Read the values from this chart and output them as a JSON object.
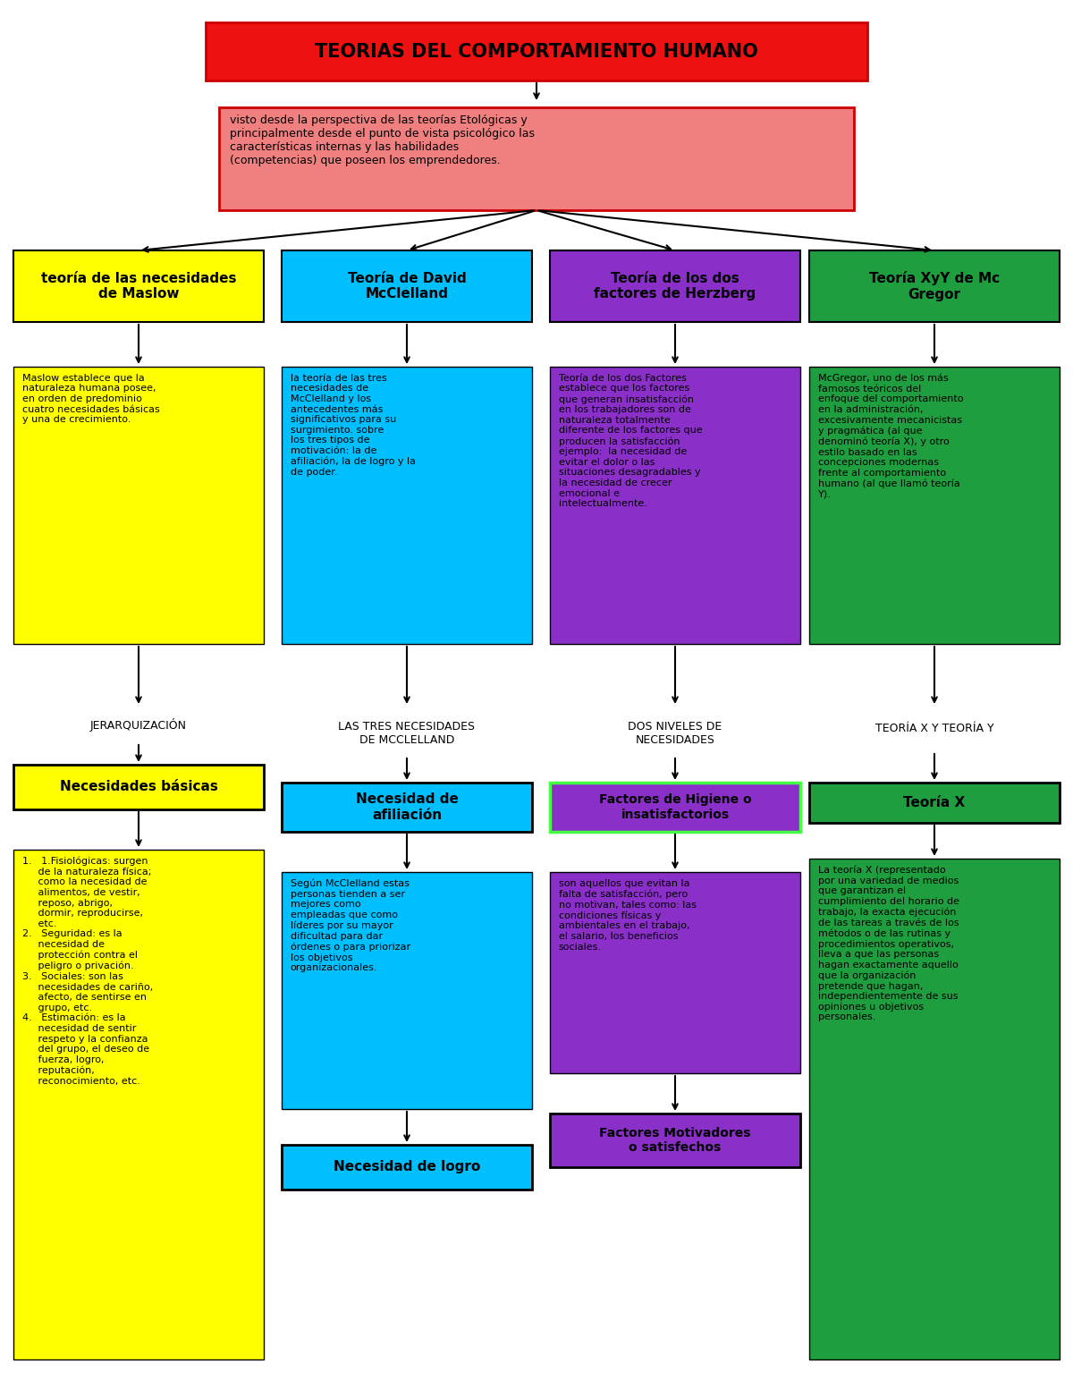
{
  "title": "TEORIAS DEL COMPORTAMIENTO HUMANO",
  "title_color": "#EE1111",
  "bg_color": "#FFFFFF",
  "subtitle_text": "visto desde la perspectiva de las teorías Etológicas y\nprincipalmente desde el punto de vista psicológico las\ncaracterísticas internas y las habilidades\n(competencias) que poseen los emprendedores.",
  "subtitle_color": "#F08080",
  "col_headers": [
    "teoría de las necesidades\nde Maslow",
    "Teoría de David\nMcClelland",
    "Teoría de los dos\nfactores de Herzberg",
    "Teoría XyY de Mc\nGregor"
  ],
  "col_colors": [
    "#FFFF00",
    "#00BFFF",
    "#8B2FC9",
    "#1E9E3E"
  ],
  "col_bodies": [
    "Maslow establece que la\nnaturaleza humana posee,\nen orden de predominio\ncuatro necesidades básicas\ny una de crecimiento.",
    "la teoría de las tres\nnecesidades de\nMcClelland y los\nantecedentes más\nsignificativos para su\nsurgimiento. sobre\nlos tres tipos de\nmotivación: la de\nafiliación, la de logro y la\nde poder.",
    "Teoría de los dos Factores\nestablece que los factores\nque generan insatisfacción\nen los trabajadores son de\nnaturaleza totalmente\ndiferente de los factores que\nproducen la satisfacción\nejemplo:  la necesidad de\nevitar el dolor o las\nsituaciones desagradables y\nla necesidad de crecer\nemocional e\nintelectualmente.",
    "McGregor, uno de los más\nfamosos teóricos del\nenfoque del comportamiento\nen la administración,\nexcesivamente mecanicistas\ny pragmática (al que\ndenominó teoría X), y otro\nestilo basado en las\nconcepciones modernas\nfrente al comportamiento\nhumano (al que llamó teoría\nY)."
  ],
  "col1_label1": "JERARQUIZACIÓN",
  "col1_box1_text": "Necesidades básicas",
  "col1_list": "1.   1.Fisiológicas: surgen\n     de la naturaleza física;\n     como la necesidad de\n     alimentos, de vestir,\n     reposo, abrigo,\n     dormir, reproducirse,\n     etc.\n2.   Seguridad: es la\n     necesidad de\n     protección contra el\n     peligro o privación.\n3.   Sociales: son las\n     necesidades de cariño,\n     afecto, de sentirse en\n     grupo, etc.\n4.   Estimación: es la\n     necesidad de sentir\n     respeto y la confianza\n     del grupo, el deseo de\n     fuerza, logro,\n     reputación,\n     reconocimiento, etc.",
  "col2_label1": "LAS TRES NECESIDADES\nDE MCCLELLAND",
  "col2_box1_text": "Necesidad de\nafiliación",
  "col2_box1_body": "Según McClelland estas\npersonas tienden a ser\nmejores como\nempleadas que como\nlíderes por su mayor\ndificultad para dar\nórdenes o para priorizar\nlos objetivos\norganizacionales.",
  "col2_box2_text": "Necesidad de logro",
  "col3_label1": "DOS NIVELES DE\nNECESIDADES",
  "col3_box1_text": "Factores de Higiene o\ninsatisfactorios",
  "col3_box1_border": "#44FF44",
  "col3_box1_body": "son aquellos que evitan la\nfalta de satisfacción, pero\nno motivan, tales como: las\ncondiciones físicas y\nambientales en el trabajo,\nel salario, los beneficios\nsociales.",
  "col3_box2_text": "Factores Motivadores\no satisfechos",
  "col4_label1": "TEORÍA X Y TEORÍA Y",
  "col4_box1_text": "Teoría X",
  "col4_box1_body": "La teoría X (representado\npor una variedad de medios\nque garantizan el\ncumplimiento del horario de\ntrabajo, la exacta ejecución\nde las tareas a través de los\nmétodos o de las rutinas y\nprocedimientos operativos,\nlleva a que las personas\nhagan exactamente aquello\nque la organización\npretende que hagan,\nindependientemente de sus\nopiniones u objetivos\npersonales."
}
